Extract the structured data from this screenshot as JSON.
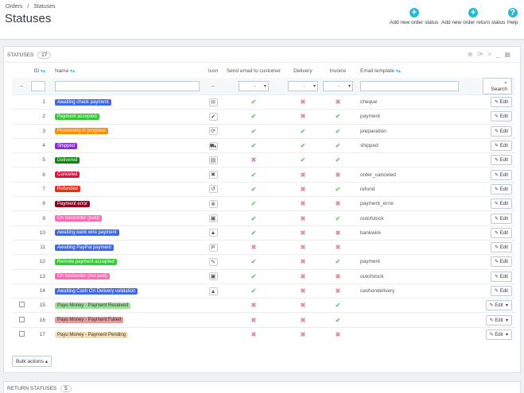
{
  "breadcrumb": [
    "Orders",
    "/",
    "Statuses"
  ],
  "page_title": "Statuses",
  "toolbar": {
    "add_order_status": "Add new order status",
    "add_return_status": "Add new order return status",
    "help": "Help"
  },
  "panel": {
    "title": "STATUSES",
    "count": "17"
  },
  "columns": {
    "id": "ID",
    "name": "Name",
    "icon": "Icon",
    "send": "Send email to customer",
    "delivery": "Delivery",
    "invoice": "Invoice",
    "template": "Email template"
  },
  "filters": {
    "dash": "--",
    "any": "-",
    "search_label": "Search"
  },
  "edit_label": "Edit",
  "rows": [
    {
      "id": "1",
      "name": "Awaiting check payment",
      "color": "#4169e1",
      "icon": "✉",
      "send": true,
      "delivery": false,
      "invoice": false,
      "template": "cheque",
      "check": false
    },
    {
      "id": "2",
      "name": "Payment accepted",
      "color": "#32cd32",
      "icon": "✔",
      "send": true,
      "delivery": false,
      "invoice": true,
      "template": "payment",
      "check": false
    },
    {
      "id": "3",
      "name": "Processing in progress",
      "color": "#ff8c00",
      "icon": "⟳",
      "send": true,
      "delivery": true,
      "invoice": true,
      "template": "preparation",
      "check": false
    },
    {
      "id": "4",
      "name": "Shipped",
      "color": "#8a2be2",
      "icon": "⛟",
      "send": true,
      "delivery": true,
      "invoice": true,
      "template": "shipped",
      "check": false
    },
    {
      "id": "5",
      "name": "Delivered",
      "color": "#108510",
      "icon": "▤",
      "send": false,
      "delivery": true,
      "invoice": true,
      "template": "",
      "check": false
    },
    {
      "id": "6",
      "name": "Canceled",
      "color": "#dc143c",
      "icon": "✖",
      "send": true,
      "delivery": false,
      "invoice": false,
      "template": "order_canceled",
      "check": false
    },
    {
      "id": "7",
      "name": "Refunded",
      "color": "#ec2e15",
      "icon": "↺",
      "send": true,
      "delivery": false,
      "invoice": true,
      "template": "refund",
      "check": false
    },
    {
      "id": "8",
      "name": "Payment error",
      "color": "#8f0621",
      "icon": "⊗",
      "send": true,
      "delivery": false,
      "invoice": false,
      "template": "payment_error",
      "check": false
    },
    {
      "id": "9",
      "name": "On backorder (paid)",
      "color": "#ff69b4",
      "icon": "▣",
      "send": true,
      "delivery": false,
      "invoice": true,
      "template": "outofstock",
      "check": false
    },
    {
      "id": "10",
      "name": "Awaiting bank wire payment",
      "color": "#4169e1",
      "icon": "▲",
      "send": true,
      "delivery": false,
      "invoice": false,
      "template": "bankwire",
      "check": false
    },
    {
      "id": "11",
      "name": "Awaiting PayPal payment",
      "color": "#4169e1",
      "icon": "P",
      "send": false,
      "delivery": false,
      "invoice": false,
      "template": "",
      "check": false
    },
    {
      "id": "12",
      "name": "Remote payment accepted",
      "color": "#32cd32",
      "icon": "✎",
      "send": true,
      "delivery": false,
      "invoice": true,
      "template": "payment",
      "check": false
    },
    {
      "id": "13",
      "name": "On backorder (not paid)",
      "color": "#ff69b4",
      "icon": "▣",
      "send": true,
      "delivery": false,
      "invoice": false,
      "template": "outofstock",
      "check": false
    },
    {
      "id": "14",
      "name": "Awaiting Cash On Delivery validation",
      "color": "#4169e1",
      "icon": "▲",
      "send": true,
      "delivery": false,
      "invoice": false,
      "template": "cashondelivery",
      "check": false
    },
    {
      "id": "15",
      "name": "Payu Money - Payment Received",
      "color": "#9de09d",
      "icon": "",
      "send": false,
      "delivery": false,
      "invoice": true,
      "template": "",
      "check": true,
      "textDark": true
    },
    {
      "id": "16",
      "name": "Payu Money - Payment Failed",
      "color": "#e69a9a",
      "icon": "",
      "send": false,
      "delivery": false,
      "invoice": true,
      "template": "",
      "check": true,
      "textDark": true
    },
    {
      "id": "17",
      "name": "Payu Money - Payment Pending",
      "color": "#f5dfb5",
      "icon": "",
      "send": false,
      "delivery": false,
      "invoice": false,
      "template": "",
      "check": true,
      "textDark": true
    }
  ],
  "bulk_label": "Bulk actions",
  "panel2": {
    "title": "RETURN STATUSES",
    "count": "5"
  }
}
